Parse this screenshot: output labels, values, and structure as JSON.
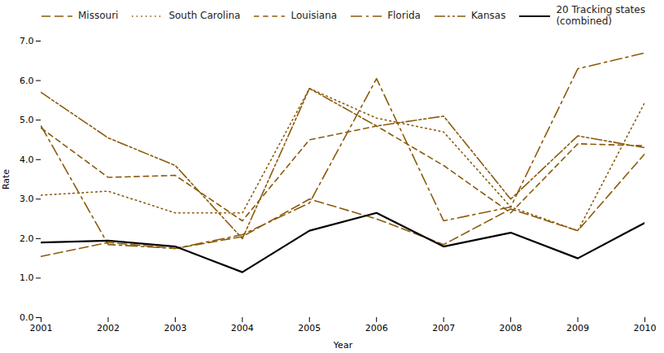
{
  "chart_data": {
    "type": "line",
    "x": [
      2001,
      2002,
      2003,
      2004,
      2005,
      2006,
      2007,
      2008,
      2009,
      2010
    ],
    "xlabel": "Year",
    "ylabel": "Rate",
    "xlim": [
      2001,
      2010
    ],
    "xticks": [
      2001,
      2002,
      2003,
      2004,
      2005,
      2006,
      2007,
      2008,
      2009,
      2010
    ],
    "ylim": [
      0,
      7
    ],
    "yticks": [
      0,
      1,
      2,
      3,
      4,
      5,
      6,
      7
    ],
    "grid": false,
    "legend": "upper left",
    "series": [
      {
        "name": "Missouri",
        "color": "#8B5A0A",
        "line_style": "long_dash",
        "values": [
          1.55,
          1.9,
          1.75,
          2.05,
          3.0,
          2.5,
          1.85,
          2.75,
          2.2,
          4.15
        ]
      },
      {
        "name": "South Carolina",
        "color": "#8B5A0A",
        "line_style": "dotted",
        "values": [
          3.1,
          3.2,
          2.65,
          2.65,
          5.8,
          5.05,
          4.7,
          2.8,
          2.2,
          5.45
        ]
      },
      {
        "name": "Louisiana",
        "color": "#8B5A0A",
        "line_style": "dashed",
        "values": [
          4.8,
          3.55,
          3.6,
          2.45,
          4.5,
          4.85,
          3.85,
          2.65,
          4.4,
          4.35
        ]
      },
      {
        "name": "Florida",
        "color": "#8B5A0A",
        "line_style": "long_dash_short_dash",
        "values": [
          4.85,
          1.85,
          1.75,
          2.1,
          2.9,
          6.05,
          2.45,
          2.8,
          6.3,
          6.7
        ]
      },
      {
        "name": "Kansas",
        "color": "#8B5A0A",
        "line_style": "dash_dot_dot",
        "values": [
          5.7,
          4.55,
          3.85,
          2.0,
          5.8,
          4.85,
          5.1,
          3.0,
          4.6,
          4.3
        ]
      },
      {
        "name": "20 Tracking states\n(combined)",
        "color": "#000000",
        "line_style": "solid",
        "values": [
          1.9,
          1.95,
          1.8,
          1.15,
          2.2,
          2.65,
          1.8,
          2.15,
          1.5,
          2.4
        ]
      }
    ]
  }
}
